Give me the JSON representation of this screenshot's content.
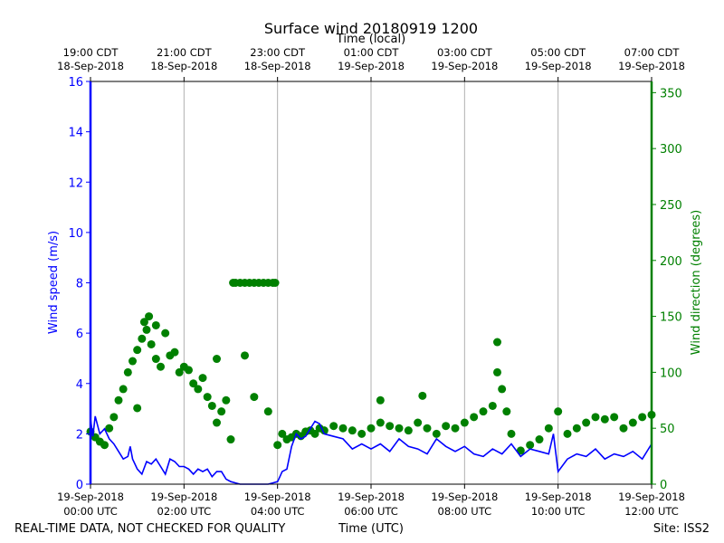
{
  "chart_data": {
    "type": "line",
    "title": "Surface wind 20180919 1200",
    "top_axis_label": "Time (local)",
    "xlabel": "Time (UTC)",
    "ylabel_left": "Wind speed (m/s)",
    "ylabel_right": "Wind direction (degrees)",
    "footer_left": "REAL-TIME DATA, NOT CHECKED FOR QUALITY",
    "footer_right": "Site: ISS2",
    "x_range_hours": [
      0,
      12
    ],
    "ylim_left": [
      0,
      16
    ],
    "ylim_right": [
      0,
      360
    ],
    "left_ticks": [
      0,
      2,
      4,
      6,
      8,
      10,
      12,
      14,
      16
    ],
    "right_ticks": [
      0,
      50,
      100,
      150,
      200,
      250,
      300,
      350
    ],
    "colors": {
      "speed": "#0000ff",
      "direction": "#008000",
      "grid": "#b0b0b0"
    },
    "bottom_ticks": [
      {
        "hour": 0,
        "time": "00:00 UTC",
        "date": "19-Sep-2018"
      },
      {
        "hour": 2,
        "time": "02:00 UTC",
        "date": "19-Sep-2018"
      },
      {
        "hour": 4,
        "time": "04:00 UTC",
        "date": "19-Sep-2018"
      },
      {
        "hour": 6,
        "time": "06:00 UTC",
        "date": "19-Sep-2018"
      },
      {
        "hour": 8,
        "time": "08:00 UTC",
        "date": "19-Sep-2018"
      },
      {
        "hour": 10,
        "time": "10:00 UTC",
        "date": "19-Sep-2018"
      },
      {
        "hour": 12,
        "time": "12:00 UTC",
        "date": "19-Sep-2018"
      }
    ],
    "top_ticks": [
      {
        "hour": 0,
        "time": "19:00 CDT",
        "date": "18-Sep-2018"
      },
      {
        "hour": 2,
        "time": "21:00 CDT",
        "date": "18-Sep-2018"
      },
      {
        "hour": 4,
        "time": "23:00 CDT",
        "date": "18-Sep-2018"
      },
      {
        "hour": 6,
        "time": "01:00 CDT",
        "date": "19-Sep-2018"
      },
      {
        "hour": 8,
        "time": "03:00 CDT",
        "date": "19-Sep-2018"
      },
      {
        "hour": 10,
        "time": "05:00 CDT",
        "date": "19-Sep-2018"
      },
      {
        "hour": 12,
        "time": "07:00 CDT",
        "date": "19-Sep-2018"
      }
    ],
    "series": [
      {
        "name": "Wind speed",
        "axis": "left",
        "style": "line",
        "x": [
          0,
          0.05,
          0.1,
          0.2,
          0.3,
          0.4,
          0.5,
          0.6,
          0.7,
          0.8,
          0.85,
          0.9,
          1.0,
          1.1,
          1.2,
          1.3,
          1.4,
          1.5,
          1.6,
          1.7,
          1.8,
          1.9,
          2.0,
          2.1,
          2.2,
          2.3,
          2.4,
          2.5,
          2.6,
          2.7,
          2.8,
          2.9,
          3.0,
          3.1,
          3.2,
          3.5,
          3.8,
          3.9,
          4.0,
          4.05,
          4.1,
          4.2,
          4.3,
          4.4,
          4.5,
          4.6,
          4.7,
          4.8,
          4.9,
          5.0,
          5.2,
          5.4,
          5.6,
          5.8,
          6.0,
          6.2,
          6.4,
          6.6,
          6.8,
          7.0,
          7.2,
          7.4,
          7.6,
          7.8,
          8.0,
          8.2,
          8.4,
          8.6,
          8.8,
          9.0,
          9.2,
          9.4,
          9.6,
          9.8,
          9.9,
          10.0,
          10.2,
          10.4,
          10.6,
          10.8,
          11.0,
          11.2,
          11.4,
          11.6,
          11.8,
          12.0
        ],
        "values": [
          2.6,
          1.9,
          2.7,
          2.0,
          2.2,
          1.8,
          1.6,
          1.3,
          1.0,
          1.1,
          1.5,
          1.0,
          0.6,
          0.4,
          0.9,
          0.8,
          1.0,
          0.7,
          0.4,
          1.0,
          0.9,
          0.7,
          0.7,
          0.6,
          0.4,
          0.6,
          0.5,
          0.6,
          0.3,
          0.5,
          0.5,
          0.2,
          0.1,
          0.05,
          0.0,
          0.0,
          0.0,
          0.05,
          0.1,
          0.3,
          0.5,
          0.6,
          1.5,
          2.0,
          1.8,
          1.9,
          2.2,
          2.5,
          2.4,
          2.0,
          1.9,
          1.8,
          1.4,
          1.6,
          1.4,
          1.6,
          1.3,
          1.8,
          1.5,
          1.4,
          1.2,
          1.8,
          1.5,
          1.3,
          1.5,
          1.2,
          1.1,
          1.4,
          1.2,
          1.6,
          1.1,
          1.4,
          1.3,
          1.2,
          2.0,
          0.5,
          1.0,
          1.2,
          1.1,
          1.4,
          1.0,
          1.2,
          1.1,
          1.3,
          1.0,
          1.6
        ]
      },
      {
        "name": "Wind direction",
        "axis": "right",
        "style": "scatter",
        "x": [
          0.0,
          0.1,
          0.2,
          0.3,
          0.4,
          0.5,
          0.6,
          0.7,
          0.8,
          0.9,
          1.0,
          1.1,
          1.15,
          1.2,
          1.25,
          1.3,
          1.4,
          1.5,
          1.6,
          1.7,
          1.8,
          1.9,
          2.0,
          2.1,
          2.2,
          2.3,
          2.4,
          2.5,
          2.6,
          2.7,
          2.8,
          2.9,
          3.0,
          3.05,
          3.1,
          3.2,
          3.3,
          3.4,
          3.5,
          3.6,
          3.7,
          3.8,
          3.9,
          3.95,
          4.0,
          4.1,
          4.2,
          4.3,
          4.4,
          4.5,
          4.6,
          4.7,
          4.8,
          4.9,
          5.0,
          5.2,
          5.4,
          5.6,
          5.8,
          6.0,
          6.2,
          6.4,
          6.6,
          6.8,
          7.0,
          7.2,
          7.4,
          7.6,
          7.8,
          8.0,
          8.2,
          8.4,
          8.6,
          8.7,
          8.8,
          8.9,
          9.0,
          9.2,
          9.4,
          9.6,
          9.8,
          10.0,
          10.2,
          10.4,
          10.6,
          10.8,
          11.0,
          11.2,
          11.4,
          11.6,
          11.8,
          12.0
        ],
        "values": [
          47,
          42,
          38,
          35,
          50,
          60,
          75,
          85,
          100,
          110,
          120,
          130,
          145,
          138,
          150,
          125,
          112,
          105,
          135,
          115,
          118,
          100,
          105,
          102,
          90,
          85,
          95,
          78,
          70,
          55,
          65,
          75,
          40,
          180,
          180,
          180,
          180,
          180,
          180,
          180,
          180,
          180,
          180,
          180,
          35,
          45,
          40,
          42,
          45,
          43,
          47,
          48,
          45,
          50,
          48,
          52,
          50,
          48,
          45,
          50,
          55,
          52,
          50,
          48,
          55,
          50,
          45,
          52,
          50,
          55,
          60,
          65,
          70,
          100,
          85,
          65,
          45,
          30,
          35,
          40,
          50,
          65,
          45,
          50,
          55,
          60,
          58,
          60,
          50,
          55,
          60,
          62
        ]
      }
    ],
    "extra_points": [
      {
        "x": 3.3,
        "y": 115
      },
      {
        "x": 3.5,
        "y": 78
      },
      {
        "x": 3.8,
        "y": 65
      },
      {
        "x": 2.7,
        "y": 112
      },
      {
        "x": 1.4,
        "y": 142
      },
      {
        "x": 8.7,
        "y": 127
      },
      {
        "x": 7.1,
        "y": 79
      },
      {
        "x": 1.0,
        "y": 68
      },
      {
        "x": 6.2,
        "y": 75
      }
    ]
  }
}
